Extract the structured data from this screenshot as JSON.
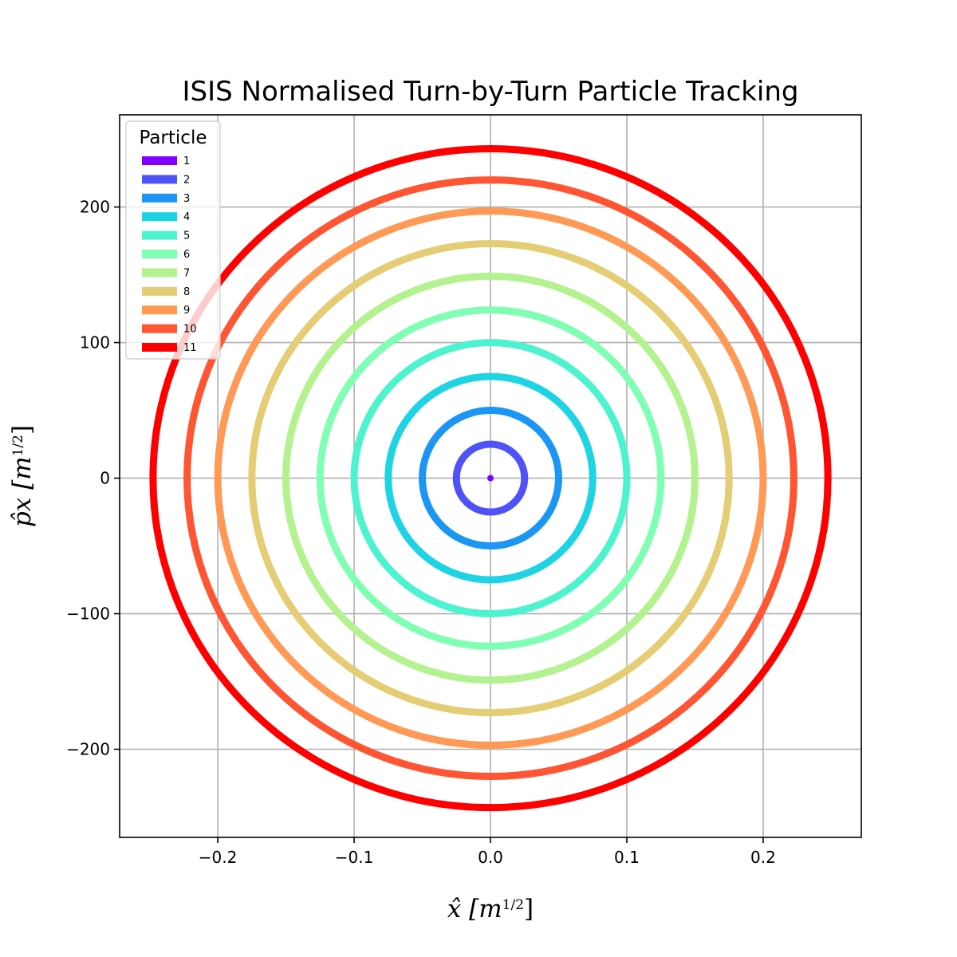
{
  "chart_data": {
    "type": "scatter",
    "title": "ISIS Normalised Turn-by-Turn Particle Tracking",
    "xlabel": "x̂ [m½]",
    "xlabel_main": "x̂ [m",
    "xlabel_exp": "1/2",
    "xlabel_close": "]",
    "ylabel": "p̂x [m½]",
    "ylabel_main": "p̂x [m",
    "ylabel_exp": "1/2",
    "ylabel_close": "]",
    "xlim": [
      -0.272,
      0.272
    ],
    "ylim": [
      -265,
      268
    ],
    "grid": true,
    "xticks": [
      {
        "value": -0.2,
        "label": "−0.2"
      },
      {
        "value": -0.1,
        "label": "−0.1"
      },
      {
        "value": 0.0,
        "label": "0.0"
      },
      {
        "value": 0.1,
        "label": "0.1"
      },
      {
        "value": 0.2,
        "label": "0.2"
      }
    ],
    "yticks": [
      {
        "value": 200,
        "label": "200"
      },
      {
        "value": 100,
        "label": "100"
      },
      {
        "value": 0,
        "label": "0"
      },
      {
        "value": -100,
        "label": "−100"
      },
      {
        "value": -200,
        "label": "−200"
      }
    ],
    "legend": {
      "title": "Particle",
      "placement": "upper-left"
    },
    "series": [
      {
        "name": "1",
        "color": "#8000ff",
        "rx": 0.0,
        "ry": 0.0
      },
      {
        "name": "2",
        "color": "#4f52f9",
        "rx": 0.025,
        "ry": 25
      },
      {
        "name": "3",
        "color": "#1b96f4",
        "rx": 0.05,
        "ry": 50
      },
      {
        "name": "4",
        "color": "#1ed3e4",
        "rx": 0.075,
        "ry": 75
      },
      {
        "name": "5",
        "color": "#4df3cf",
        "rx": 0.1,
        "ry": 100
      },
      {
        "name": "6",
        "color": "#80ffb4",
        "rx": 0.125,
        "ry": 124
      },
      {
        "name": "7",
        "color": "#b3f28f",
        "rx": 0.15,
        "ry": 149
      },
      {
        "name": "8",
        "color": "#e5cd75",
        "rx": 0.175,
        "ry": 173
      },
      {
        "name": "9",
        "color": "#ff9955",
        "rx": 0.2,
        "ry": 197
      },
      {
        "name": "10",
        "color": "#ff5533",
        "rx": 0.2225,
        "ry": 220
      },
      {
        "name": "11",
        "color": "#ff0000",
        "rx": 0.2475,
        "ry": 243
      }
    ]
  }
}
